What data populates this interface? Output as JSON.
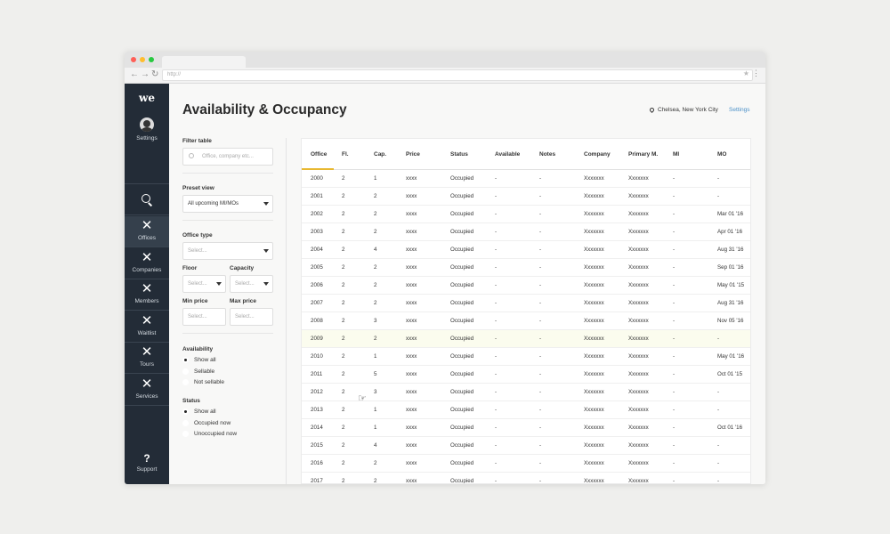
{
  "browser": {
    "url": "http://",
    "dots": [
      "#ff5f57",
      "#ffbd2e",
      "#28c940"
    ]
  },
  "sidebar": {
    "logo": "we",
    "settings_label": "Settings",
    "items": [
      {
        "label": "Offices",
        "icon": "close-icon",
        "active": true
      },
      {
        "label": "Companies",
        "icon": "close-icon",
        "active": false
      },
      {
        "label": "Members",
        "icon": "close-icon",
        "active": false
      },
      {
        "label": "Waitlist",
        "icon": "close-icon",
        "active": false
      },
      {
        "label": "Tours",
        "icon": "close-icon",
        "active": false
      },
      {
        "label": "Services",
        "icon": "close-icon",
        "active": false
      }
    ],
    "support_label": "Support"
  },
  "header": {
    "title": "Availability & Occupancy",
    "location": "Chelsea, New York City",
    "settings_link": "Settings"
  },
  "filters": {
    "filter_table_label": "Filter table",
    "search_placeholder": "Office, company etc...",
    "preset_view_label": "Preset view",
    "preset_view_value": "All upcoming MI/MOs",
    "office_type_label": "Office type",
    "office_type_placeholder": "Select...",
    "floor_label": "Floor",
    "floor_placeholder": "Select...",
    "capacity_label": "Capacity",
    "capacity_placeholder": "Select...",
    "min_price_label": "Min price",
    "min_price_placeholder": "Select...",
    "max_price_label": "Max price",
    "max_price_placeholder": "Select...",
    "availability_label": "Availability",
    "availability_options": [
      {
        "label": "Show all",
        "selected": true
      },
      {
        "label": "Sellable",
        "selected": false
      },
      {
        "label": "Not sellable",
        "selected": false
      }
    ],
    "status_label": "Status",
    "status_options": [
      {
        "label": "Show all",
        "selected": true
      },
      {
        "label": "Occupied now",
        "selected": false
      },
      {
        "label": "Unoccupied now",
        "selected": false
      }
    ]
  },
  "table": {
    "columns": [
      "Office",
      "Fl.",
      "Cap.",
      "Price",
      "Status",
      "Available",
      "Notes",
      "Company",
      "Primary M.",
      "MI",
      "MO"
    ],
    "highlight_row": 9,
    "rows": [
      [
        "2000",
        "2",
        "1",
        "xxxx",
        "Occupied",
        "-",
        "-",
        "Xxxxxxx",
        "Xxxxxxx",
        "-",
        "-"
      ],
      [
        "2001",
        "2",
        "2",
        "xxxx",
        "Occupied",
        "-",
        "-",
        "Xxxxxxx",
        "Xxxxxxx",
        "-",
        "-"
      ],
      [
        "2002",
        "2",
        "2",
        "xxxx",
        "Occupied",
        "-",
        "-",
        "Xxxxxxx",
        "Xxxxxxx",
        "-",
        "Mar 01 '16"
      ],
      [
        "2003",
        "2",
        "2",
        "xxxx",
        "Occupied",
        "-",
        "-",
        "Xxxxxxx",
        "Xxxxxxx",
        "-",
        "Apr 01 '16"
      ],
      [
        "2004",
        "2",
        "4",
        "xxxx",
        "Occupied",
        "-",
        "-",
        "Xxxxxxx",
        "Xxxxxxx",
        "-",
        "Aug 31 '16"
      ],
      [
        "2005",
        "2",
        "2",
        "xxxx",
        "Occupied",
        "-",
        "-",
        "Xxxxxxx",
        "Xxxxxxx",
        "-",
        "Sep 01 '16"
      ],
      [
        "2006",
        "2",
        "2",
        "xxxx",
        "Occupied",
        "-",
        "-",
        "Xxxxxxx",
        "Xxxxxxx",
        "-",
        "May 01 '15"
      ],
      [
        "2007",
        "2",
        "2",
        "xxxx",
        "Occupied",
        "-",
        "-",
        "Xxxxxxx",
        "Xxxxxxx",
        "-",
        "Aug 31 '16"
      ],
      [
        "2008",
        "2",
        "3",
        "xxxx",
        "Occupied",
        "-",
        "-",
        "Xxxxxxx",
        "Xxxxxxx",
        "-",
        "Nov 05 '16"
      ],
      [
        "2009",
        "2",
        "2",
        "xxxx",
        "Occupied",
        "-",
        "-",
        "Xxxxxxx",
        "Xxxxxxx",
        "-",
        "-"
      ],
      [
        "2010",
        "2",
        "1",
        "xxxx",
        "Occupied",
        "-",
        "-",
        "Xxxxxxx",
        "Xxxxxxx",
        "-",
        "May 01 '16"
      ],
      [
        "2011",
        "2",
        "5",
        "xxxx",
        "Occupied",
        "-",
        "-",
        "Xxxxxxx",
        "Xxxxxxx",
        "-",
        "Oct 01 '15"
      ],
      [
        "2012",
        "2",
        "3",
        "xxxx",
        "Occupied",
        "-",
        "-",
        "Xxxxxxx",
        "Xxxxxxx",
        "-",
        "-"
      ],
      [
        "2013",
        "2",
        "1",
        "xxxx",
        "Occupied",
        "-",
        "-",
        "Xxxxxxx",
        "Xxxxxxx",
        "-",
        "-"
      ],
      [
        "2014",
        "2",
        "1",
        "xxxx",
        "Occupied",
        "-",
        "-",
        "Xxxxxxx",
        "Xxxxxxx",
        "-",
        "Oct 01 '16"
      ],
      [
        "2015",
        "2",
        "4",
        "xxxx",
        "Occupied",
        "-",
        "-",
        "Xxxxxxx",
        "Xxxxxxx",
        "-",
        "-"
      ],
      [
        "2016",
        "2",
        "2",
        "xxxx",
        "Occupied",
        "-",
        "-",
        "Xxxxxxx",
        "Xxxxxxx",
        "-",
        "-"
      ],
      [
        "2017",
        "2",
        "2",
        "xxxx",
        "Occupied",
        "-",
        "-",
        "Xxxxxxx",
        "Xxxxxxx",
        "-",
        "-"
      ]
    ]
  },
  "colors": {
    "sidebar_bg": "#232c37",
    "accent_underline": "#e8b830",
    "link": "#4a90c8",
    "row_highlight": "#fbfcee"
  }
}
